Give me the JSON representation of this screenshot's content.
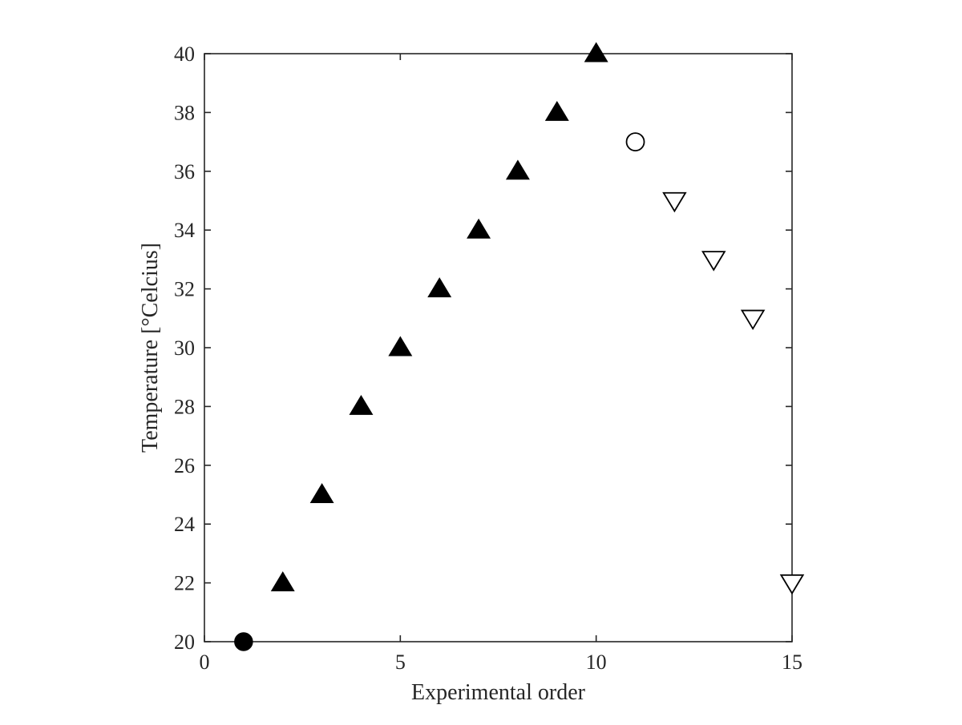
{
  "chart_data": {
    "type": "scatter",
    "title": "",
    "xlabel": "Experimental order",
    "ylabel": "Temperature [°Celcius]",
    "xlim": [
      0,
      15
    ],
    "ylim": [
      20,
      40
    ],
    "xticks": [
      0,
      5,
      10,
      15
    ],
    "xtick_labels": [
      "0",
      "5",
      "10",
      "15"
    ],
    "yticks": [
      20,
      22,
      24,
      26,
      28,
      30,
      32,
      34,
      36,
      38,
      40
    ],
    "ytick_labels": [
      "20",
      "22",
      "24",
      "26",
      "28",
      "30",
      "32",
      "34",
      "36",
      "38",
      "40"
    ],
    "grid": false,
    "box": true,
    "legend": "none",
    "colors": {
      "marker_fill": "#000000",
      "marker_edge": "#000000",
      "axis": "#262626"
    },
    "series": [
      {
        "marker": "filled-circle",
        "x": [
          1
        ],
        "y": [
          20
        ]
      },
      {
        "marker": "filled-triangle-up",
        "x": [
          2,
          3,
          4,
          5,
          6,
          7,
          8,
          9,
          10
        ],
        "y": [
          22,
          25,
          28,
          30,
          32,
          34,
          36,
          38,
          40
        ]
      },
      {
        "marker": "open-circle",
        "x": [
          11
        ],
        "y": [
          37
        ]
      },
      {
        "marker": "open-triangle-down",
        "x": [
          12,
          13,
          14,
          15
        ],
        "y": [
          35,
          33,
          31,
          22
        ]
      }
    ]
  }
}
